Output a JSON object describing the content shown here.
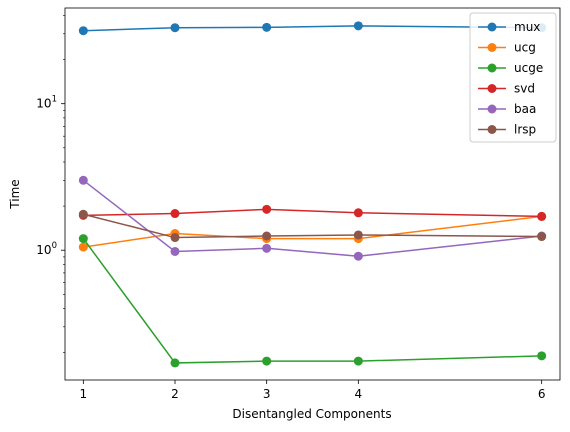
{
  "chart_data": {
    "type": "line",
    "title": "",
    "xlabel": "Disentangled Components",
    "ylabel": "Time",
    "yscale": "log",
    "xlim": [
      0.8,
      6.2
    ],
    "ylim": [
      0.13,
      45
    ],
    "x": [
      1,
      2,
      3,
      4,
      6
    ],
    "x_ticks": [
      "1",
      "2",
      "3",
      "4",
      "6"
    ],
    "y_ticks": [
      {
        "value": 1,
        "label": "10",
        "exp": "0"
      },
      {
        "value": 10,
        "label": "10",
        "exp": "1"
      }
    ],
    "legend_position": "upper right",
    "grid": false,
    "series": [
      {
        "name": "mux",
        "color": "#1f77b4",
        "values": [
          31.5,
          33.0,
          33.2,
          34.0,
          33.0
        ]
      },
      {
        "name": "ucg",
        "color": "#ff7f0e",
        "values": [
          1.05,
          1.3,
          1.2,
          1.2,
          1.7
        ]
      },
      {
        "name": "ucge",
        "color": "#2ca02c",
        "values": [
          1.2,
          0.17,
          0.175,
          0.175,
          0.19
        ]
      },
      {
        "name": "svd",
        "color": "#d62728",
        "values": [
          1.73,
          1.78,
          1.9,
          1.8,
          1.7
        ]
      },
      {
        "name": "baa",
        "color": "#9467bd",
        "values": [
          3.0,
          0.98,
          1.03,
          0.91,
          1.25
        ]
      },
      {
        "name": "lrsp",
        "color": "#8c564b",
        "values": [
          1.76,
          1.22,
          1.25,
          1.27,
          1.24
        ]
      }
    ]
  }
}
